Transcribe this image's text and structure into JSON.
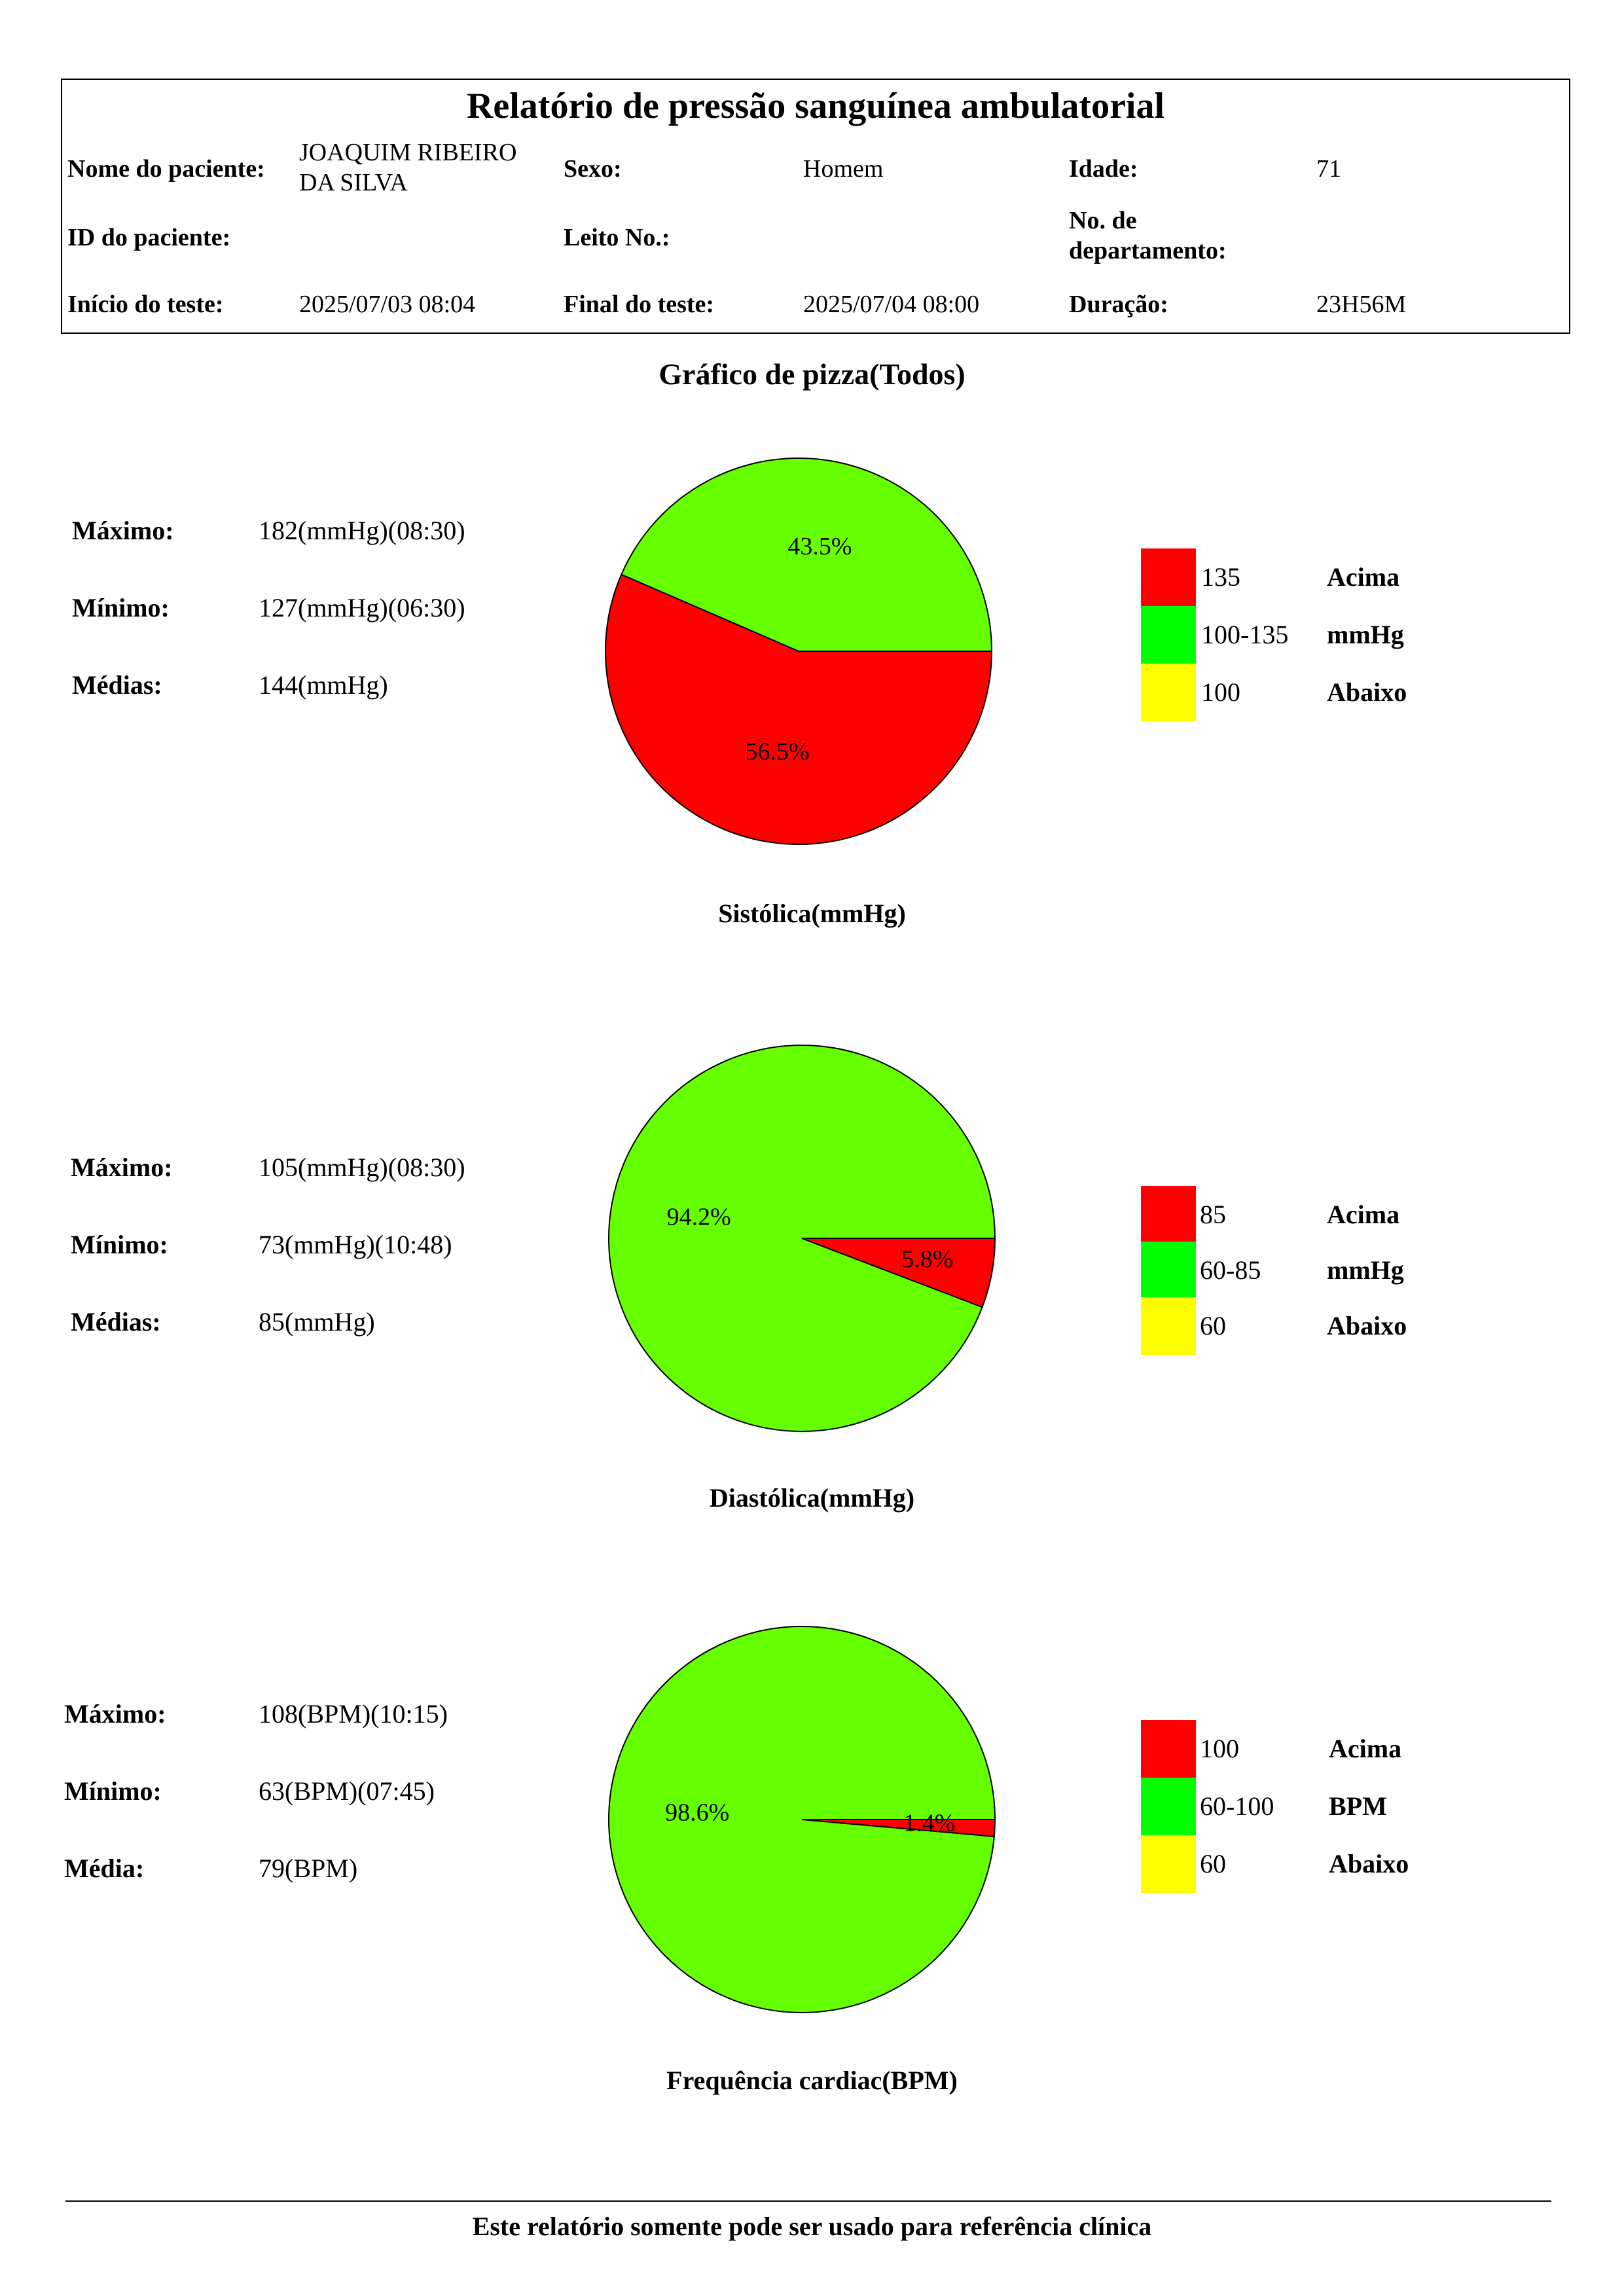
{
  "report": {
    "title": "Relatório de pressão sanguínea ambulatorial",
    "patient_name_label": "Nome do paciente:",
    "patient_name": "JOAQUIM RIBEIRO DA SILVA",
    "sex_label": "Sexo:",
    "sex": "Homem",
    "age_label": "Idade:",
    "age": "71",
    "patient_id_label": "ID do paciente:",
    "patient_id": "",
    "bed_label": "Leito No.:",
    "bed": "",
    "department_label": "No. de departamento:",
    "department": "",
    "start_label": "Início do teste:",
    "start": "2025/07/03 08:04",
    "end_label": "Final do teste:",
    "end": "2025/07/04 08:00",
    "duration_label": "Duração:",
    "duration": "23H56M"
  },
  "section_title": "Gráfico de pizza(Todos)",
  "colors": {
    "above": "#ff0000",
    "normal": "#00ff00",
    "below": "#ffff00",
    "pie_green": "#66ff00"
  },
  "charts": [
    {
      "caption": "Sistólica(mmHg)",
      "stats": [
        {
          "label": "Máximo:",
          "value": "182(mmHg)(08:30)"
        },
        {
          "label": "Mínimo:",
          "value": "127(mmHg)(06:30)"
        },
        {
          "label": "Médias:",
          "value": "144(mmHg)"
        }
      ],
      "legend": [
        {
          "range": "135",
          "word": "Acima"
        },
        {
          "range": "100-135",
          "word": "mmHg"
        },
        {
          "range": "100",
          "word": "Abaixo"
        }
      ]
    },
    {
      "caption": "Diastólica(mmHg)",
      "stats": [
        {
          "label": "Máximo:",
          "value": "105(mmHg)(08:30)"
        },
        {
          "label": "Mínimo:",
          "value": "73(mmHg)(10:48)"
        },
        {
          "label": "Médias:",
          "value": "85(mmHg)"
        }
      ],
      "legend": [
        {
          "range": "85",
          "word": "Acima"
        },
        {
          "range": "60-85",
          "word": "mmHg"
        },
        {
          "range": "60",
          "word": "Abaixo"
        }
      ]
    },
    {
      "caption": "Frequência cardiac(BPM)",
      "stats": [
        {
          "label": "Máximo:",
          "value": "108(BPM)(10:15)"
        },
        {
          "label": "Mínimo:",
          "value": "63(BPM)(07:45)"
        },
        {
          "label": "Média:",
          "value": "79(BPM)"
        }
      ],
      "legend": [
        {
          "range": "100",
          "word": "Acima"
        },
        {
          "range": "60-100",
          "word": "BPM"
        },
        {
          "range": "60",
          "word": "Abaixo"
        }
      ]
    }
  ],
  "chart_data": [
    {
      "type": "pie",
      "title": "Sistólica(mmHg)",
      "slices": [
        {
          "category": "above",
          "value": 56.5,
          "label": "56.5%"
        },
        {
          "category": "normal",
          "value": 43.5,
          "label": "43.5%"
        }
      ]
    },
    {
      "type": "pie",
      "title": "Diastólica(mmHg)",
      "slices": [
        {
          "category": "above",
          "value": 5.8,
          "label": "5.8%"
        },
        {
          "category": "normal",
          "value": 94.2,
          "label": "94.2%"
        }
      ]
    },
    {
      "type": "pie",
      "title": "Frequência cardiac(BPM)",
      "slices": [
        {
          "category": "above",
          "value": 1.4,
          "label": "1.4%"
        },
        {
          "category": "normal",
          "value": 98.6,
          "label": "98.6%"
        }
      ]
    }
  ],
  "footer": "Este relatório somente pode ser usado para referência clínica"
}
